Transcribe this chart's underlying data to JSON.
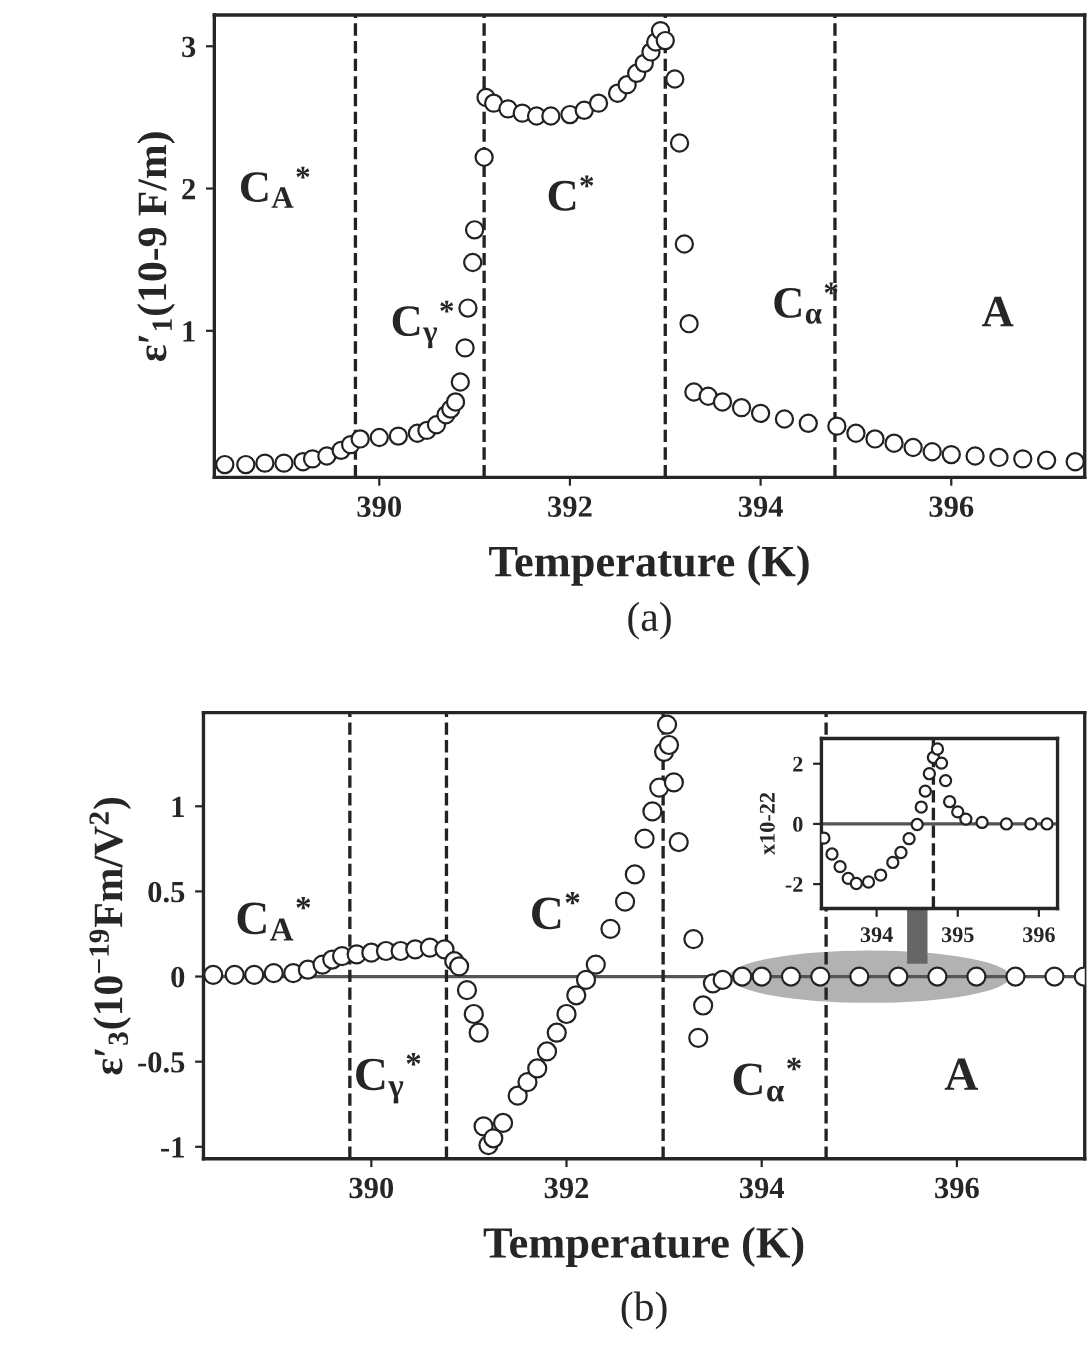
{
  "chart_data": [
    {
      "type": "scatter",
      "xlabel": "Temperature (K)",
      "ylabel": "ε′$_{1}$(10-9 F/m)",
      "marker": "circle",
      "xlim": [
        388.27,
        397.4
      ],
      "xticks": [
        390,
        392,
        394,
        396
      ],
      "ylim": [
        -0.03,
        3.22
      ],
      "yticks": [
        1,
        2,
        3
      ],
      "series": [
        {
          "color": "#222222",
          "x": [
            388.38,
            388.6,
            388.8,
            389.0,
            389.2,
            389.3,
            389.45,
            389.6,
            389.7,
            389.8,
            390.0,
            390.2,
            390.4,
            390.5,
            390.6,
            390.7,
            390.75,
            390.8,
            390.85,
            390.9,
            390.93,
            390.98,
            391.0,
            391.1,
            391.12,
            391.2,
            391.35,
            391.5,
            391.65,
            391.8,
            392.0,
            392.15,
            392.3,
            392.5,
            392.6,
            392.7,
            392.78,
            392.85,
            392.9,
            392.95,
            393.0,
            393.1,
            393.15,
            393.2,
            393.25,
            393.3,
            393.45,
            393.6,
            393.8,
            394.0,
            394.25,
            394.5,
            394.8,
            395.0,
            395.2,
            395.4,
            395.6,
            395.8,
            396.0,
            396.25,
            396.5,
            396.75,
            397.0,
            397.3
          ],
          "values": [
            0.06,
            0.06,
            0.07,
            0.07,
            0.08,
            0.1,
            0.12,
            0.16,
            0.2,
            0.24,
            0.25,
            0.26,
            0.28,
            0.3,
            0.34,
            0.41,
            0.45,
            0.5,
            0.64,
            0.88,
            1.16,
            1.48,
            1.71,
            2.22,
            2.64,
            2.6,
            2.56,
            2.53,
            2.51,
            2.51,
            2.52,
            2.55,
            2.6,
            2.67,
            2.73,
            2.81,
            2.88,
            2.96,
            3.03,
            3.11,
            3.04,
            2.77,
            2.32,
            1.61,
            1.05,
            0.57,
            0.54,
            0.5,
            0.46,
            0.42,
            0.38,
            0.35,
            0.33,
            0.28,
            0.24,
            0.21,
            0.18,
            0.15,
            0.13,
            0.12,
            0.11,
            0.1,
            0.09,
            0.08
          ]
        }
      ],
      "ref_lines": [
        {
          "axis": "x",
          "value": 389.75,
          "line_style": "dashed",
          "color": "#222222"
        },
        {
          "axis": "x",
          "value": 391.1,
          "line_style": "dashed",
          "color": "#222222"
        },
        {
          "axis": "x",
          "value": 393.0,
          "line_style": "dashed",
          "color": "#222222"
        },
        {
          "axis": "x",
          "value": 394.78,
          "line_style": "dashed",
          "color": "#222222"
        }
      ],
      "annotations": [
        "C$_{A}$$^{*}$",
        "C$_{γ}$$^{*}$",
        "C$^{*}$",
        "C$_{α}$$^{*}$",
        "A",
        "(a)"
      ]
    },
    {
      "type": "scatter",
      "xlabel": "Temperature (K)",
      "ylabel": "ε′$_{3}$(10$^{−19}$Fm/V$^{2}$)",
      "marker": "circle",
      "xlim": [
        388.28,
        397.31
      ],
      "xticks": [
        390,
        392,
        394,
        396
      ],
      "ylim": [
        -1.07,
        1.55
      ],
      "yticks": [
        -1,
        -0.5,
        0,
        0.5,
        1
      ],
      "series": [
        {
          "color": "#222222",
          "x": [
            388.38,
            388.6,
            388.8,
            389.0,
            389.2,
            389.35,
            389.5,
            389.6,
            389.7,
            389.85,
            390.0,
            390.15,
            390.3,
            390.45,
            390.6,
            390.75,
            390.85,
            390.9,
            390.98,
            391.05,
            391.1,
            391.15,
            391.2,
            391.25,
            391.35,
            391.5,
            391.6,
            391.7,
            391.8,
            391.9,
            392.0,
            392.1,
            392.2,
            392.3,
            392.45,
            392.6,
            392.7,
            392.8,
            392.88,
            392.95,
            393.0,
            393.03,
            393.05,
            393.1,
            393.15,
            393.3,
            393.35,
            393.4,
            393.5,
            393.6,
            393.8,
            394.0,
            394.3,
            394.6,
            395.0,
            395.4,
            395.8,
            396.2,
            396.6,
            397.0,
            397.3
          ],
          "values": [
            0.01,
            0.01,
            0.01,
            0.02,
            0.02,
            0.04,
            0.07,
            0.1,
            0.12,
            0.13,
            0.14,
            0.15,
            0.15,
            0.16,
            0.17,
            0.16,
            0.09,
            0.06,
            -0.08,
            -0.22,
            -0.33,
            -0.88,
            -0.99,
            -0.95,
            -0.86,
            -0.7,
            -0.62,
            -0.54,
            -0.44,
            -0.33,
            -0.22,
            -0.11,
            -0.02,
            0.07,
            0.28,
            0.44,
            0.6,
            0.81,
            0.97,
            1.11,
            1.32,
            1.48,
            1.36,
            1.14,
            0.79,
            0.22,
            -0.36,
            -0.17,
            -0.04,
            -0.02,
            0.0,
            0.0,
            0.0,
            0.0,
            0.0,
            0.0,
            0.0,
            0.0,
            0.0,
            0.0,
            0.0
          ]
        }
      ],
      "ref_lines": [
        {
          "axis": "y",
          "value": 0,
          "line_style": "solid",
          "color": "#555555"
        },
        {
          "axis": "x",
          "value": 389.78,
          "line_style": "dashed",
          "color": "#222222"
        },
        {
          "axis": "x",
          "value": 390.77,
          "line_style": "dashed",
          "color": "#222222"
        },
        {
          "axis": "x",
          "value": 392.99,
          "line_style": "dashed",
          "color": "#222222"
        },
        {
          "axis": "x",
          "value": 394.66,
          "line_style": "dashed",
          "color": "#222222"
        }
      ],
      "annotations": [
        "C$_{A}$$^{*}$",
        "C$_{γ}$$^{*}$",
        "C$^{*}$",
        "C$_{α}$$^{*}$",
        "A",
        "(b)"
      ]
    },
    {
      "type": "scatter",
      "ylabel": "x10-22",
      "marker": "circle",
      "xlim": [
        393.32,
        396.23
      ],
      "xticks": [
        394,
        395,
        396
      ],
      "ylim": [
        -2.81,
        2.84
      ],
      "yticks": [
        -2,
        0,
        2
      ],
      "series": [
        {
          "color": "#222222",
          "x": [
            393.35,
            393.45,
            393.55,
            393.65,
            393.75,
            393.9,
            394.05,
            394.2,
            394.3,
            394.4,
            394.5,
            394.55,
            394.6,
            394.65,
            394.7,
            394.75,
            394.8,
            394.85,
            394.9,
            395.0,
            395.1,
            395.3,
            395.6,
            395.9,
            396.1
          ],
          "values": [
            -0.47,
            -1.0,
            -1.42,
            -1.81,
            -1.98,
            -1.93,
            -1.7,
            -1.28,
            -0.95,
            -0.49,
            -0.02,
            0.56,
            1.09,
            1.67,
            2.21,
            2.49,
            2.02,
            1.44,
            0.74,
            0.4,
            0.16,
            0.05,
            0.0,
            0.0,
            0.0
          ]
        }
      ],
      "ref_lines": [
        {
          "axis": "y",
          "value": 0,
          "line_style": "solid",
          "color": "#555555"
        },
        {
          "axis": "x",
          "value": 394.7,
          "line_style": "dashed",
          "color": "#222222"
        }
      ]
    }
  ]
}
